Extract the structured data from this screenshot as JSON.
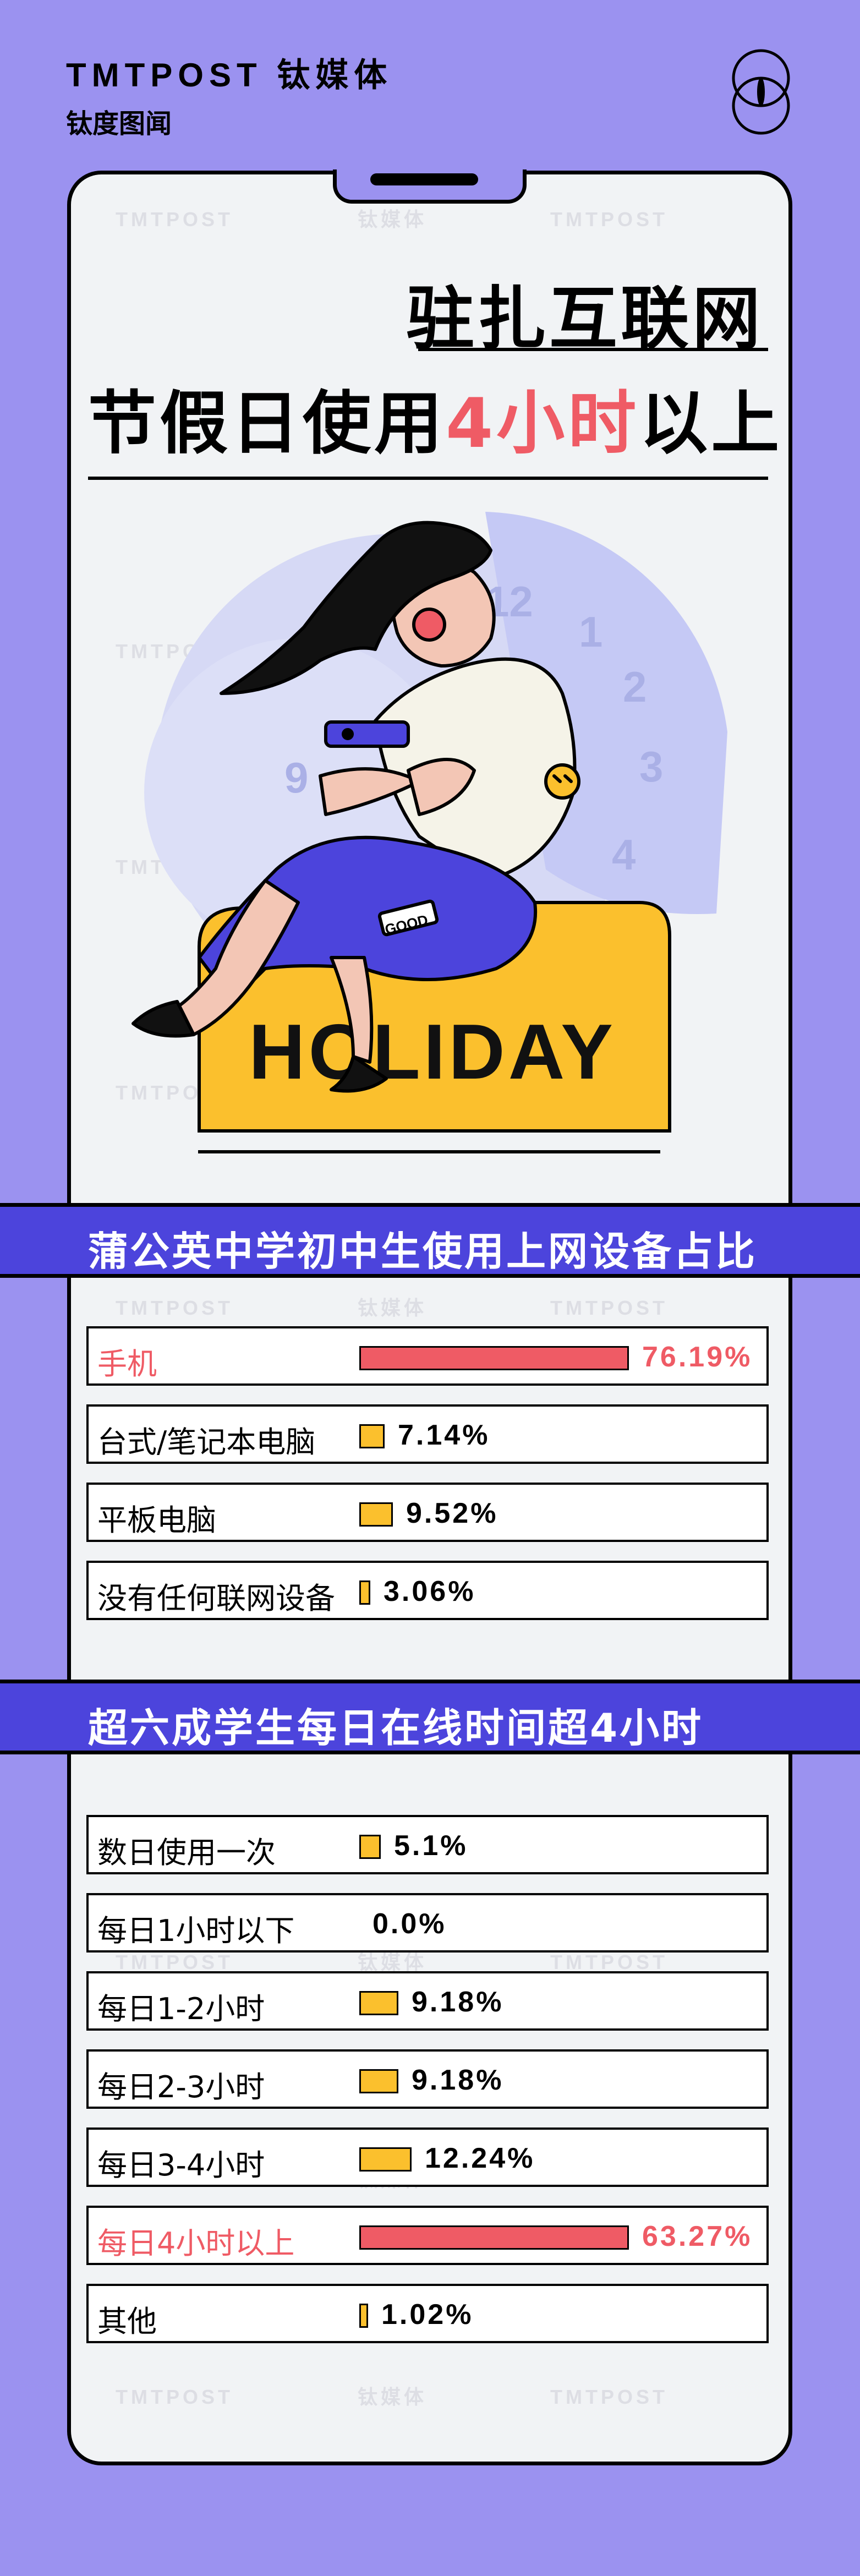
{
  "brand": {
    "name": "TMTPOST 钛媒体",
    "column": "钛度图闻"
  },
  "watermark": {
    "en": "TMTPOST",
    "zh": "钛媒体"
  },
  "headline": {
    "line1": "驻扎互联网",
    "line2_pre": "节假日使用",
    "line2_highlight": "4小时",
    "line2_post": "以上"
  },
  "illustration": {
    "sign_text": "HOLIDAY",
    "skirt_tag": "GOOD",
    "clock_numerals": [
      "12",
      "1",
      "2",
      "3",
      "4",
      "9"
    ]
  },
  "colors": {
    "background": "#9b92f0",
    "section_bar": "#4c44dc",
    "highlight": "#ef5b65",
    "bar_fill": "#fbc02d",
    "panel": "#f1f3f5"
  },
  "chart_data": [
    {
      "type": "bar",
      "title": "蒲公英中学初中生使用上网设备占比",
      "categories": [
        "手机",
        "台式/笔记本电脑",
        "平板电脑",
        "没有任何联网设备"
      ],
      "values": [
        76.19,
        7.14,
        9.52,
        3.06
      ],
      "value_labels": [
        "76.19%",
        "7.14%",
        "9.52%",
        "3.06%"
      ],
      "highlight": [
        true,
        false,
        false,
        false
      ]
    },
    {
      "type": "bar",
      "title": "超六成学生每日在线时间超4小时",
      "categories": [
        "数日使用一次",
        "每日1小时以下",
        "每日1-2小时",
        "每日2-3小时",
        "每日3-4小时",
        "每日4小时以上",
        "其他"
      ],
      "values": [
        5.1,
        0.0,
        9.18,
        9.18,
        12.24,
        63.27,
        1.02
      ],
      "value_labels": [
        "5.1%",
        "0.0%",
        "9.18%",
        "9.18%",
        "12.24%",
        "63.27%",
        "1.02%"
      ],
      "highlight": [
        false,
        false,
        false,
        false,
        false,
        true,
        false
      ]
    }
  ]
}
